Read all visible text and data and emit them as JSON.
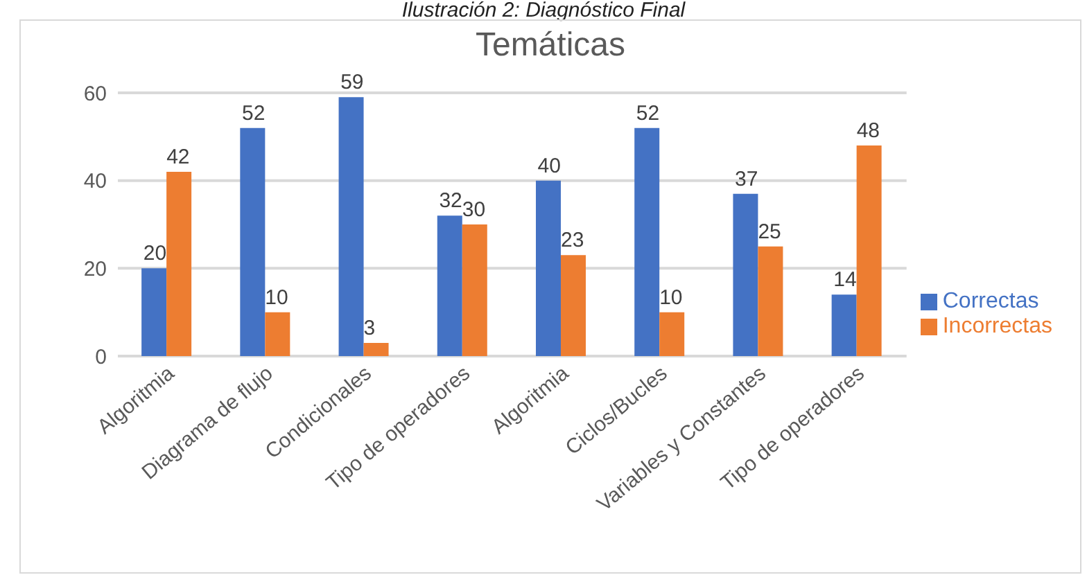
{
  "chart_data": {
    "type": "bar",
    "title": "Temáticas",
    "annotations": [
      "Ilustración 2: Diagnóstico Final"
    ],
    "categories": [
      "Algoritmia",
      "Diagrama de flujo",
      "Condicionales",
      "Tipo de operadores",
      "Algoritmia",
      "Ciclos/Bucles",
      "Variables y Constantes",
      "Tipo de operadores"
    ],
    "series": [
      {
        "name": "Correctas",
        "color": "#4472c4",
        "values": [
          20,
          52,
          59,
          32,
          40,
          52,
          37,
          14
        ]
      },
      {
        "name": "Incorrectas",
        "color": "#ed7d31",
        "values": [
          42,
          10,
          3,
          30,
          23,
          10,
          25,
          48
        ]
      }
    ],
    "ylim": [
      0,
      60
    ],
    "yticks": [
      0,
      20,
      40,
      60
    ],
    "grid": "y",
    "legend": "right",
    "data_labels": true
  }
}
